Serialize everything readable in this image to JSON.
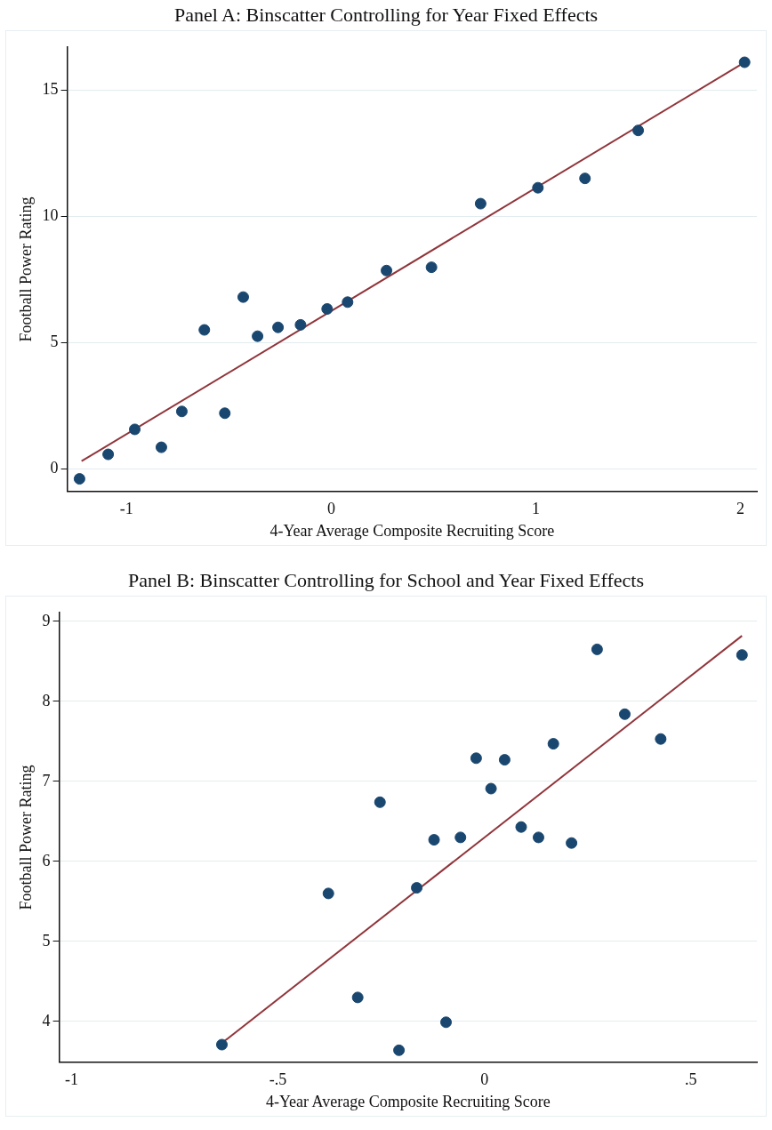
{
  "chart_data": [
    {
      "type": "scatter",
      "title": "Panel A: Binscatter Controlling for Year Fixed Effects",
      "xlabel": "4-Year Average Composite Recruiting Score",
      "ylabel": "Football Power Rating",
      "xlim": [
        -1.29,
        2.08
      ],
      "ylim": [
        -0.9,
        16.7
      ],
      "xticks": [
        -1,
        0,
        1,
        2
      ],
      "yticks": [
        0,
        5,
        10,
        15
      ],
      "grid": "y",
      "legend": false,
      "x": [
        -1.23,
        -1.09,
        -0.96,
        -0.83,
        -0.73,
        -0.62,
        -0.52,
        -0.43,
        -0.36,
        -0.26,
        -0.15,
        -0.02,
        0.08,
        0.27,
        0.49,
        0.73,
        1.01,
        1.24,
        1.5,
        2.02
      ],
      "series": [
        {
          "color": "#1a476f",
          "marker": "circle",
          "values": [
            -0.4,
            0.57,
            1.56,
            0.85,
            2.27,
            5.5,
            2.2,
            6.8,
            5.25,
            5.6,
            5.7,
            6.33,
            6.6,
            7.85,
            7.98,
            10.5,
            11.13,
            11.5,
            13.4,
            16.1
          ]
        },
        {
          "type": "line",
          "color": "#90353b",
          "x": [
            -1.22,
            2.02
          ],
          "values": [
            0.3,
            16.1
          ]
        }
      ]
    },
    {
      "type": "scatter",
      "title": "Panel B: Binscatter Controlling for School and Year Fixed Effects",
      "xlabel": "4-Year Average Composite Recruiting Score",
      "ylabel": "Football Power Rating",
      "xlim": [
        -1.03,
        0.66
      ],
      "ylim": [
        3.49,
        9.11
      ],
      "xticks": [
        -1,
        {
          "value": -0.5,
          "label": "-.5"
        },
        0,
        {
          "value": 0.5,
          "label": ".5"
        }
      ],
      "yticks": [
        4,
        5,
        6,
        7,
        8,
        9
      ],
      "grid": "y",
      "legend": false,
      "x": [
        -0.636,
        -0.378,
        -0.307,
        -0.253,
        -0.207,
        -0.164,
        -0.122,
        -0.093,
        -0.058,
        -0.02,
        0.016,
        0.049,
        0.089,
        0.131,
        0.167,
        0.211,
        0.273,
        0.34,
        0.427,
        0.624
      ],
      "series": [
        {
          "color": "#1a476f",
          "marker": "circle",
          "values": [
            3.71,
            5.6,
            4.3,
            6.74,
            3.64,
            5.67,
            6.27,
            3.99,
            6.3,
            7.29,
            6.91,
            7.27,
            6.43,
            6.3,
            7.47,
            6.23,
            8.65,
            7.84,
            7.53,
            8.58
          ]
        },
        {
          "type": "line",
          "color": "#90353b",
          "x": [
            -0.636,
            0.624
          ],
          "values": [
            3.73,
            8.82
          ]
        }
      ]
    }
  ]
}
